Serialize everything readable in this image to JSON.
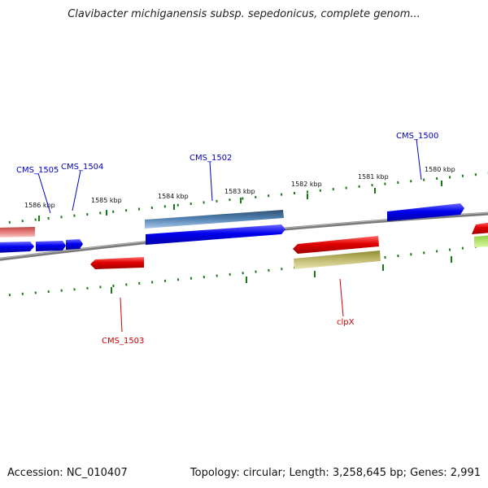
{
  "title": "Clavibacter michiganensis subsp. sepedonicus, complete genom...",
  "accession": "Accession: NC_010407",
  "summary": "Topology: circular; Length: 3,258,645 bp; Genes: 2,991",
  "ruler": {
    "ticks": [
      "1586 kbp",
      "1585 kbp",
      "1584 kbp",
      "1583 kbp",
      "1582 kbp",
      "1581 kbp",
      "1580 kbp"
    ]
  },
  "gene_labels": {
    "cms1505": "CMS_1505",
    "cms1504": "CMS_1504",
    "cms1502": "CMS_1502",
    "cms1500": "CMS_1500",
    "cms1503": "CMS_1503",
    "clpx": "clpX"
  },
  "colors": {
    "forward_strand": "#0000ee",
    "reverse_strand": "#dd0000",
    "backbone": "#808080",
    "tick": "#1a7a1a"
  }
}
